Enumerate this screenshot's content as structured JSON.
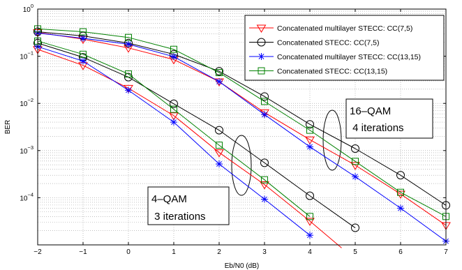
{
  "chart_data": {
    "type": "line",
    "xlabel": "Eb/N0 (dB)",
    "ylabel": "BER",
    "xlim": [
      -2,
      7
    ],
    "ylim_exp": [
      -5,
      0
    ],
    "y_scale": "log",
    "grid": true,
    "legend_position": "top-right",
    "x_ticks": [
      "−2",
      "−1",
      "0",
      "1",
      "2",
      "3",
      "4",
      "5",
      "6",
      "7"
    ],
    "y_ticks": [
      {
        "base": "10",
        "exp": "0"
      },
      {
        "base": "10",
        "exp": "−1"
      },
      {
        "base": "10",
        "exp": "−2"
      },
      {
        "base": "10",
        "exp": "−3"
      },
      {
        "base": "10",
        "exp": "−4"
      }
    ],
    "series": [
      {
        "name": "Concatenated multilayer STECC: CC(7,5)",
        "color": "#ff0000",
        "marker": "triangle-down",
        "group": "16-QAM",
        "x": [
          -2,
          -1,
          0,
          1,
          2,
          3,
          4,
          5,
          6,
          7
        ],
        "y": [
          0.32,
          0.23,
          0.15,
          0.085,
          0.029,
          0.0064,
          0.0017,
          0.00049,
          0.00012,
          2.6e-05
        ]
      },
      {
        "name": "Concatenated STECC: CC(7,5)",
        "color": "#000000",
        "marker": "circle",
        "group": "16-QAM",
        "x": [
          -2,
          -1,
          0,
          1,
          2,
          3,
          4,
          5,
          6,
          7
        ],
        "y": [
          0.33,
          0.27,
          0.19,
          0.11,
          0.048,
          0.014,
          0.0036,
          0.0011,
          0.0003,
          6.9e-05
        ]
      },
      {
        "name": "Concatenated multilayer STECC: CC(13,15)",
        "color": "#0000ff",
        "marker": "asterisk",
        "group": "16-QAM",
        "x": [
          -2,
          -1,
          0,
          1,
          2,
          3,
          4,
          5,
          6,
          7
        ],
        "y": [
          0.31,
          0.24,
          0.18,
          0.098,
          0.029,
          0.0058,
          0.0012,
          0.00028,
          6e-05,
          1.2e-05
        ]
      },
      {
        "name": "Concatenated STECC: CC(13,15)",
        "color": "#008000",
        "marker": "square",
        "group": "16-QAM",
        "x": [
          -2,
          -1,
          0,
          1,
          2,
          3,
          4,
          5,
          6,
          7
        ],
        "y": [
          0.38,
          0.33,
          0.25,
          0.14,
          0.045,
          0.011,
          0.0027,
          0.00059,
          0.00013,
          4e-05
        ]
      },
      {
        "name": "Concatenated multilayer STECC: CC(7,5)",
        "color": "#ff0000",
        "marker": "triangle-down",
        "group": "4-QAM",
        "legend": false,
        "x": [
          -2,
          -1,
          0,
          1,
          2,
          3,
          4
        ],
        "y": [
          0.14,
          0.064,
          0.021,
          0.0055,
          0.00091,
          0.00019,
          3.2e-05
        ],
        "extend_x": 4.7,
        "extend_y": 8.6e-06
      },
      {
        "name": "Concatenated STECC: CC(7,5)",
        "color": "#000000",
        "marker": "circle",
        "group": "4-QAM",
        "legend": false,
        "x": [
          -2,
          -1,
          0,
          1,
          2,
          3,
          4,
          5
        ],
        "y": [
          0.19,
          0.095,
          0.036,
          0.0098,
          0.0027,
          0.00055,
          0.00011,
          2.3e-05
        ]
      },
      {
        "name": "Concatenated multilayer STECC: CC(13,15)",
        "color": "#0000ff",
        "marker": "asterisk",
        "group": "4-QAM",
        "legend": false,
        "x": [
          -2,
          -1,
          0,
          1,
          2,
          3,
          4
        ],
        "y": [
          0.16,
          0.079,
          0.019,
          0.004,
          0.00052,
          9.3e-05,
          1.6e-05
        ]
      },
      {
        "name": "Concatenated STECC: CC(13,15)",
        "color": "#008000",
        "marker": "square",
        "group": "4-QAM",
        "legend": false,
        "x": [
          -2,
          -1,
          0,
          1,
          2,
          3,
          4
        ],
        "y": [
          0.21,
          0.11,
          0.042,
          0.0075,
          0.0013,
          0.00024,
          4e-05
        ]
      }
    ],
    "annotations": [
      {
        "id": "anno-16qam",
        "lines": [
          "16–QAM",
          " 4 iterations"
        ]
      },
      {
        "id": "anno-4qam",
        "lines": [
          "4–QAM",
          " 3 iterations"
        ]
      }
    ]
  }
}
